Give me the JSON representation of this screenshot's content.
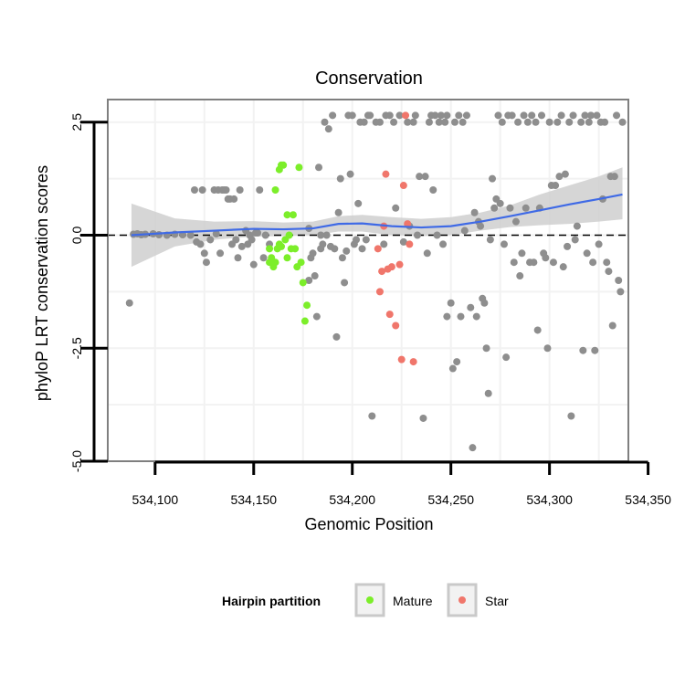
{
  "chart_data": {
    "type": "scatter",
    "title": "Conservation",
    "xlabel": "Genomic Position",
    "ylabel": "phyloP LRT conservation scores",
    "xlim": [
      534076,
      534340
    ],
    "ylim": [
      -5.0,
      3.0
    ],
    "x_ticks": [
      534100,
      534150,
      534200,
      534250,
      534300,
      534350
    ],
    "x_tick_labels": [
      "534,100",
      "534,150",
      "534,200",
      "534,250",
      "534,300",
      "534,350"
    ],
    "y_ticks": [
      -5.0,
      -2.5,
      0.0,
      2.5
    ],
    "y_tick_labels": [
      "-5.0",
      "-2.5",
      "0.0",
      "2.5"
    ],
    "reference_line": 0.0,
    "grid": true,
    "legend": {
      "title": "Hairpin partition",
      "position": "bottom",
      "entries": [
        {
          "label": "Mature",
          "color": "#7cee2a"
        },
        {
          "label": "Star",
          "color": "#f0766b"
        }
      ]
    },
    "colors": {
      "other": "#8e8e8e",
      "mature": "#7cee2a",
      "star": "#f0766b",
      "smooth": "#3f6ae6",
      "ribbon": "#cfcfcf"
    },
    "series": [
      {
        "name": "Other",
        "color": "#8e8e8e",
        "points": [
          [
            534087,
            -1.5
          ],
          [
            534089,
            0.02
          ],
          [
            534091,
            0.03
          ],
          [
            534093,
            0.01
          ],
          [
            534095,
            0.02
          ],
          [
            534099,
            0.03
          ],
          [
            534102,
            0.01
          ],
          [
            534106,
            0.0
          ],
          [
            534110,
            0.02
          ],
          [
            534114,
            0.01
          ],
          [
            534118,
            0.0
          ],
          [
            534120,
            1.0
          ],
          [
            534121,
            -0.15
          ],
          [
            534123,
            -0.2
          ],
          [
            534124,
            1.0
          ],
          [
            534125,
            -0.4
          ],
          [
            534126,
            -0.6
          ],
          [
            534128,
            -0.1
          ],
          [
            534130,
            1.0
          ],
          [
            534131,
            0.03
          ],
          [
            534132,
            1.0
          ],
          [
            534133,
            -0.4
          ],
          [
            534134,
            1.0
          ],
          [
            534135,
            1.0
          ],
          [
            534136,
            1.0
          ],
          [
            534137,
            0.8
          ],
          [
            534138,
            0.8
          ],
          [
            534139,
            -0.2
          ],
          [
            534140,
            0.8
          ],
          [
            534141,
            -0.1
          ],
          [
            534142,
            -0.5
          ],
          [
            534143,
            1.0
          ],
          [
            534144,
            -0.25
          ],
          [
            534146,
            0.1
          ],
          [
            534147,
            -0.2
          ],
          [
            534148,
            0.0
          ],
          [
            534149,
            -0.1
          ],
          [
            534150,
            -0.65
          ],
          [
            534151,
            0.05
          ],
          [
            534152,
            0.05
          ],
          [
            534153,
            1.0
          ],
          [
            534155,
            -0.5
          ],
          [
            534156,
            0.0
          ],
          [
            534158,
            -0.2
          ],
          [
            534178,
            -1.0
          ],
          [
            534178,
            0.15
          ],
          [
            534179,
            -0.5
          ],
          [
            534180,
            -0.4
          ],
          [
            534181,
            -0.9
          ],
          [
            534182,
            -1.8
          ],
          [
            534183,
            1.5
          ],
          [
            534184,
            0.0
          ],
          [
            534184,
            -0.3
          ],
          [
            534185,
            -0.2
          ],
          [
            534186,
            2.5
          ],
          [
            534187,
            0.0
          ],
          [
            534188,
            2.35
          ],
          [
            534189,
            -0.25
          ],
          [
            534190,
            2.65
          ],
          [
            534191,
            -0.3
          ],
          [
            534192,
            -2.25
          ],
          [
            534193,
            0.5
          ],
          [
            534194,
            1.25
          ],
          [
            534195,
            -0.5
          ],
          [
            534196,
            -1.05
          ],
          [
            534197,
            -0.35
          ],
          [
            534198,
            2.65
          ],
          [
            534199,
            1.35
          ],
          [
            534200,
            2.65
          ],
          [
            534201,
            -0.2
          ],
          [
            534202,
            -0.1
          ],
          [
            534203,
            0.7
          ],
          [
            534204,
            2.5
          ],
          [
            534205,
            -0.3
          ],
          [
            534206,
            2.5
          ],
          [
            534207,
            -0.1
          ],
          [
            534208,
            2.65
          ],
          [
            534209,
            2.65
          ],
          [
            534210,
            -4.0
          ],
          [
            534212,
            2.5
          ],
          [
            534214,
            2.5
          ],
          [
            534216,
            -0.2
          ],
          [
            534217,
            2.65
          ],
          [
            534219,
            2.65
          ],
          [
            534221,
            2.5
          ],
          [
            534222,
            0.6
          ],
          [
            534224,
            2.65
          ],
          [
            534226,
            -0.15
          ],
          [
            534228,
            2.5
          ],
          [
            534229,
            0.2
          ],
          [
            534231,
            2.5
          ],
          [
            534232,
            2.65
          ],
          [
            534233,
            0.0
          ],
          [
            534234,
            1.3
          ],
          [
            534236,
            -4.05
          ],
          [
            534237,
            1.3
          ],
          [
            534238,
            -0.4
          ],
          [
            534239,
            2.5
          ],
          [
            534240,
            2.65
          ],
          [
            534241,
            1.0
          ],
          [
            534242,
            2.65
          ],
          [
            534243,
            0.0
          ],
          [
            534244,
            2.5
          ],
          [
            534245,
            2.65
          ],
          [
            534246,
            -0.2
          ],
          [
            534247,
            2.5
          ],
          [
            534248,
            -1.8
          ],
          [
            534248,
            2.65
          ],
          [
            534250,
            -1.5
          ],
          [
            534251,
            -2.95
          ],
          [
            534252,
            2.5
          ],
          [
            534253,
            -2.8
          ],
          [
            534254,
            2.65
          ],
          [
            534255,
            -1.8
          ],
          [
            534256,
            2.5
          ],
          [
            534257,
            0.1
          ],
          [
            534258,
            2.65
          ],
          [
            534260,
            -1.6
          ],
          [
            534261,
            -4.7
          ],
          [
            534262,
            0.5
          ],
          [
            534263,
            -1.8
          ],
          [
            534264,
            0.3
          ],
          [
            534265,
            0.2
          ],
          [
            534266,
            -1.4
          ],
          [
            534267,
            -1.5
          ],
          [
            534268,
            -2.5
          ],
          [
            534269,
            -3.5
          ],
          [
            534270,
            -0.1
          ],
          [
            534271,
            1.25
          ],
          [
            534272,
            0.6
          ],
          [
            534273,
            0.8
          ],
          [
            534274,
            2.65
          ],
          [
            534275,
            0.7
          ],
          [
            534276,
            2.5
          ],
          [
            534277,
            -0.2
          ],
          [
            534278,
            -2.7
          ],
          [
            534279,
            2.65
          ],
          [
            534280,
            0.6
          ],
          [
            534281,
            2.65
          ],
          [
            534282,
            -0.6
          ],
          [
            534283,
            0.3
          ],
          [
            534284,
            2.5
          ],
          [
            534285,
            -0.9
          ],
          [
            534286,
            -0.4
          ],
          [
            534287,
            2.65
          ],
          [
            534288,
            0.6
          ],
          [
            534289,
            2.5
          ],
          [
            534290,
            -0.6
          ],
          [
            534291,
            2.65
          ],
          [
            534292,
            -0.6
          ],
          [
            534293,
            2.5
          ],
          [
            534294,
            -2.1
          ],
          [
            534295,
            0.6
          ],
          [
            534296,
            2.65
          ],
          [
            534297,
            -0.4
          ],
          [
            534298,
            -0.5
          ],
          [
            534299,
            -2.5
          ],
          [
            534300,
            2.5
          ],
          [
            534301,
            1.1
          ],
          [
            534302,
            -0.6
          ],
          [
            534303,
            1.1
          ],
          [
            534304,
            2.5
          ],
          [
            534305,
            1.3
          ],
          [
            534306,
            2.65
          ],
          [
            534307,
            -0.7
          ],
          [
            534308,
            1.35
          ],
          [
            534309,
            -0.25
          ],
          [
            534310,
            2.5
          ],
          [
            534311,
            -4.0
          ],
          [
            534312,
            2.65
          ],
          [
            534313,
            -0.1
          ],
          [
            534314,
            0.2
          ],
          [
            534316,
            2.5
          ],
          [
            534317,
            -2.55
          ],
          [
            534318,
            2.65
          ],
          [
            534319,
            -0.4
          ],
          [
            534320,
            2.5
          ],
          [
            534321,
            2.65
          ],
          [
            534322,
            -0.6
          ],
          [
            534323,
            -2.55
          ],
          [
            534324,
            2.65
          ],
          [
            534325,
            -0.2
          ],
          [
            534326,
            2.5
          ],
          [
            534327,
            0.8
          ],
          [
            534328,
            2.5
          ],
          [
            534329,
            -0.6
          ],
          [
            534330,
            -0.8
          ],
          [
            534331,
            1.3
          ],
          [
            534332,
            -2.0
          ],
          [
            534333,
            1.3
          ],
          [
            534334,
            2.65
          ],
          [
            534335,
            -1.0
          ],
          [
            534336,
            -1.25
          ],
          [
            534337,
            2.5
          ]
        ]
      },
      {
        "name": "Mature",
        "color": "#7cee2a",
        "points": [
          [
            534158,
            -0.3
          ],
          [
            534158,
            -0.6
          ],
          [
            534159,
            -0.5
          ],
          [
            534160,
            -0.7
          ],
          [
            534161,
            -0.6
          ],
          [
            534161,
            1.0
          ],
          [
            534162,
            -0.3
          ],
          [
            534163,
            -0.2
          ],
          [
            534163,
            1.45
          ],
          [
            534164,
            1.55
          ],
          [
            534164,
            -0.25
          ],
          [
            534165,
            1.55
          ],
          [
            534166,
            -0.1
          ],
          [
            534167,
            0.45
          ],
          [
            534167,
            -0.5
          ],
          [
            534168,
            0.0
          ],
          [
            534169,
            -0.3
          ],
          [
            534170,
            0.45
          ],
          [
            534171,
            -0.3
          ],
          [
            534172,
            -0.7
          ],
          [
            534173,
            1.5
          ],
          [
            534174,
            -0.6
          ],
          [
            534175,
            -1.05
          ],
          [
            534176,
            -1.9
          ],
          [
            534177,
            -1.55
          ]
        ]
      },
      {
        "name": "Star",
        "color": "#f0766b",
        "points": [
          [
            534213,
            -0.3
          ],
          [
            534214,
            -1.25
          ],
          [
            534215,
            -0.8
          ],
          [
            534216,
            0.2
          ],
          [
            534217,
            1.35
          ],
          [
            534218,
            -0.75
          ],
          [
            534219,
            -1.75
          ],
          [
            534220,
            -0.7
          ],
          [
            534222,
            -2.0
          ],
          [
            534224,
            -0.65
          ],
          [
            534225,
            -2.75
          ],
          [
            534226,
            1.1
          ],
          [
            534227,
            2.65
          ],
          [
            534228,
            0.25
          ],
          [
            534229,
            -0.2
          ],
          [
            534231,
            -2.8
          ]
        ]
      },
      {
        "name": "Smoothed trend",
        "color": "#3f6ae6",
        "line": [
          [
            534088,
            0.0
          ],
          [
            534110,
            0.06
          ],
          [
            534130,
            0.1
          ],
          [
            534150,
            0.14
          ],
          [
            534165,
            0.13
          ],
          [
            534180,
            0.15
          ],
          [
            534193,
            0.25
          ],
          [
            534205,
            0.26
          ],
          [
            534220,
            0.2
          ],
          [
            534235,
            0.17
          ],
          [
            534250,
            0.2
          ],
          [
            534265,
            0.3
          ],
          [
            534280,
            0.42
          ],
          [
            534295,
            0.55
          ],
          [
            534310,
            0.68
          ],
          [
            534325,
            0.8
          ],
          [
            534337,
            0.9
          ]
        ],
        "ribbon_lower": [
          [
            534088,
            -0.7
          ],
          [
            534110,
            -0.25
          ],
          [
            534130,
            -0.1
          ],
          [
            534150,
            -0.03
          ],
          [
            534165,
            -0.02
          ],
          [
            534180,
            0.0
          ],
          [
            534193,
            0.08
          ],
          [
            534205,
            0.08
          ],
          [
            534220,
            0.0
          ],
          [
            534235,
            -0.02
          ],
          [
            534250,
            0.0
          ],
          [
            534265,
            0.1
          ],
          [
            534280,
            0.18
          ],
          [
            534295,
            0.22
          ],
          [
            534310,
            0.25
          ],
          [
            534325,
            0.3
          ],
          [
            534337,
            0.35
          ]
        ],
        "ribbon_upper": [
          [
            534088,
            0.7
          ],
          [
            534110,
            0.37
          ],
          [
            534130,
            0.3
          ],
          [
            534150,
            0.31
          ],
          [
            534165,
            0.28
          ],
          [
            534180,
            0.3
          ],
          [
            534193,
            0.42
          ],
          [
            534205,
            0.45
          ],
          [
            534220,
            0.4
          ],
          [
            534235,
            0.36
          ],
          [
            534250,
            0.4
          ],
          [
            534265,
            0.5
          ],
          [
            534280,
            0.66
          ],
          [
            534295,
            0.9
          ],
          [
            534310,
            1.1
          ],
          [
            534325,
            1.3
          ],
          [
            534337,
            1.5
          ]
        ]
      }
    ]
  }
}
